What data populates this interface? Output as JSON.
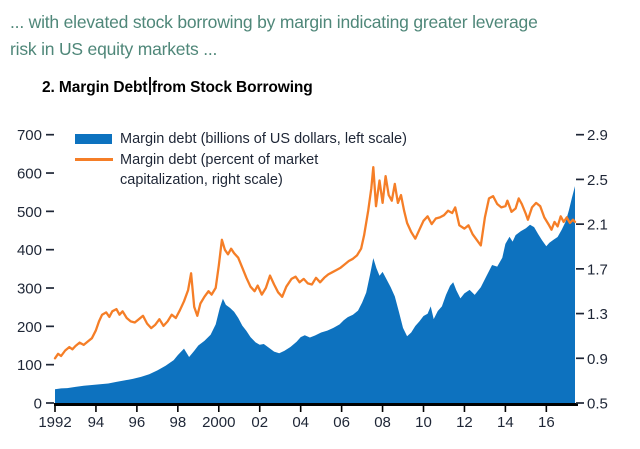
{
  "header": {
    "note_line1": "... with elevated stock borrowing by margin indicating greater leverage",
    "note_line2": "risk in US equity markets ...",
    "panel_title_part1": "2. Margin Debt",
    "panel_title_part2": "from Stock Borrowing"
  },
  "legend": {
    "series1_label": "Margin debt (billions of US dollars, left scale)",
    "series2_label_line1": "Margin debt (percent of market",
    "series2_label_line2": "capitalization, right scale)"
  },
  "colors": {
    "area_blue": "#0d72bf",
    "line_orange": "#f57e27",
    "header_teal": "#4f8779",
    "text_dark": "#1e2636",
    "axis_black": "#000000"
  },
  "chart_data": {
    "type": "combo",
    "title": "2. Margin Debt from Stock Borrowing",
    "x_axis": {
      "min": 1992,
      "max": 2017.4,
      "tick_years": [
        1992,
        1994,
        1996,
        1998,
        2000,
        2002,
        2004,
        2006,
        2008,
        2010,
        2012,
        2014,
        2016
      ],
      "tick_labels": [
        "1992",
        "94",
        "96",
        "98",
        "2000",
        "02",
        "04",
        "06",
        "08",
        "10",
        "12",
        "14",
        "16"
      ]
    },
    "left_axis": {
      "label": "Margin debt (billions of US dollars)",
      "min": 0,
      "max": 700,
      "ticks": [
        0,
        100,
        200,
        300,
        400,
        500,
        600,
        700
      ]
    },
    "right_axis": {
      "label": "Margin debt (percent of market capitalization)",
      "min": 0.5,
      "max": 2.9,
      "ticks": [
        0.5,
        0.9,
        1.3,
        1.7,
        2.1,
        2.5,
        2.9
      ]
    },
    "series": [
      {
        "name": "Margin debt (billions of US dollars, left scale)",
        "type": "area",
        "axis": "left",
        "color": "#0d72bf",
        "points": [
          [
            1992.0,
            36
          ],
          [
            1992.3,
            38
          ],
          [
            1992.6,
            39
          ],
          [
            1993.0,
            42
          ],
          [
            1993.4,
            45
          ],
          [
            1993.8,
            47
          ],
          [
            1994.2,
            49
          ],
          [
            1994.6,
            51
          ],
          [
            1995.0,
            55
          ],
          [
            1995.4,
            59
          ],
          [
            1995.8,
            63
          ],
          [
            1996.2,
            68
          ],
          [
            1996.6,
            75
          ],
          [
            1997.0,
            85
          ],
          [
            1997.4,
            97
          ],
          [
            1997.8,
            112
          ],
          [
            1998.0,
            125
          ],
          [
            1998.3,
            142
          ],
          [
            1998.55,
            120
          ],
          [
            1998.8,
            136
          ],
          [
            1999.0,
            150
          ],
          [
            1999.3,
            162
          ],
          [
            1999.6,
            178
          ],
          [
            1999.85,
            205
          ],
          [
            2000.05,
            248
          ],
          [
            2000.2,
            272
          ],
          [
            2000.35,
            256
          ],
          [
            2000.55,
            248
          ],
          [
            2000.75,
            238
          ],
          [
            2000.95,
            222
          ],
          [
            2001.15,
            202
          ],
          [
            2001.35,
            188
          ],
          [
            2001.55,
            172
          ],
          [
            2001.8,
            158
          ],
          [
            2002.0,
            152
          ],
          [
            2002.2,
            154
          ],
          [
            2002.45,
            144
          ],
          [
            2002.7,
            134
          ],
          [
            2002.95,
            130
          ],
          [
            2003.2,
            136
          ],
          [
            2003.5,
            146
          ],
          [
            2003.8,
            160
          ],
          [
            2004.0,
            172
          ],
          [
            2004.2,
            177
          ],
          [
            2004.45,
            171
          ],
          [
            2004.7,
            176
          ],
          [
            2005.0,
            184
          ],
          [
            2005.3,
            189
          ],
          [
            2005.6,
            196
          ],
          [
            2005.9,
            205
          ],
          [
            2006.1,
            216
          ],
          [
            2006.3,
            224
          ],
          [
            2006.55,
            230
          ],
          [
            2006.8,
            241
          ],
          [
            2007.0,
            262
          ],
          [
            2007.2,
            288
          ],
          [
            2007.4,
            338
          ],
          [
            2007.55,
            378
          ],
          [
            2007.7,
            352
          ],
          [
            2007.85,
            332
          ],
          [
            2008.0,
            342
          ],
          [
            2008.2,
            322
          ],
          [
            2008.4,
            302
          ],
          [
            2008.6,
            278
          ],
          [
            2008.8,
            238
          ],
          [
            2009.0,
            196
          ],
          [
            2009.2,
            174
          ],
          [
            2009.4,
            184
          ],
          [
            2009.6,
            201
          ],
          [
            2009.8,
            213
          ],
          [
            2010.0,
            227
          ],
          [
            2010.2,
            233
          ],
          [
            2010.35,
            252
          ],
          [
            2010.5,
            219
          ],
          [
            2010.7,
            240
          ],
          [
            2010.9,
            252
          ],
          [
            2011.1,
            282
          ],
          [
            2011.3,
            306
          ],
          [
            2011.45,
            315
          ],
          [
            2011.6,
            294
          ],
          [
            2011.8,
            273
          ],
          [
            2012.0,
            286
          ],
          [
            2012.25,
            295
          ],
          [
            2012.5,
            282
          ],
          [
            2012.8,
            302
          ],
          [
            2013.1,
            334
          ],
          [
            2013.35,
            360
          ],
          [
            2013.6,
            356
          ],
          [
            2013.85,
            379
          ],
          [
            2014.0,
            415
          ],
          [
            2014.2,
            434
          ],
          [
            2014.35,
            421
          ],
          [
            2014.5,
            438
          ],
          [
            2014.75,
            448
          ],
          [
            2015.0,
            456
          ],
          [
            2015.2,
            465
          ],
          [
            2015.4,
            459
          ],
          [
            2015.6,
            441
          ],
          [
            2015.8,
            424
          ],
          [
            2016.0,
            409
          ],
          [
            2016.15,
            418
          ],
          [
            2016.35,
            426
          ],
          [
            2016.55,
            433
          ],
          [
            2016.75,
            452
          ],
          [
            2016.95,
            474
          ],
          [
            2017.1,
            503
          ],
          [
            2017.25,
            535
          ],
          [
            2017.4,
            566
          ]
        ]
      },
      {
        "name": "Margin debt (percent of market capitalization, right scale)",
        "type": "line",
        "axis": "right",
        "color": "#f57e27",
        "points": [
          [
            1992.0,
            0.9
          ],
          [
            1992.15,
            0.94
          ],
          [
            1992.3,
            0.92
          ],
          [
            1992.5,
            0.97
          ],
          [
            1992.7,
            1.0
          ],
          [
            1992.85,
            0.98
          ],
          [
            1993.0,
            1.01
          ],
          [
            1993.2,
            1.04
          ],
          [
            1993.4,
            1.02
          ],
          [
            1993.6,
            1.05
          ],
          [
            1993.8,
            1.08
          ],
          [
            1994.0,
            1.15
          ],
          [
            1994.15,
            1.23
          ],
          [
            1994.3,
            1.29
          ],
          [
            1994.5,
            1.31
          ],
          [
            1994.65,
            1.27
          ],
          [
            1994.8,
            1.32
          ],
          [
            1995.0,
            1.34
          ],
          [
            1995.15,
            1.29
          ],
          [
            1995.3,
            1.32
          ],
          [
            1995.5,
            1.26
          ],
          [
            1995.7,
            1.23
          ],
          [
            1995.9,
            1.22
          ],
          [
            1996.1,
            1.25
          ],
          [
            1996.3,
            1.28
          ],
          [
            1996.5,
            1.21
          ],
          [
            1996.7,
            1.17
          ],
          [
            1996.9,
            1.2
          ],
          [
            1997.1,
            1.25
          ],
          [
            1997.3,
            1.19
          ],
          [
            1997.5,
            1.23
          ],
          [
            1997.7,
            1.29
          ],
          [
            1997.9,
            1.26
          ],
          [
            1998.1,
            1.33
          ],
          [
            1998.3,
            1.41
          ],
          [
            1998.5,
            1.51
          ],
          [
            1998.65,
            1.66
          ],
          [
            1998.8,
            1.36
          ],
          [
            1998.95,
            1.28
          ],
          [
            1999.1,
            1.39
          ],
          [
            1999.3,
            1.45
          ],
          [
            1999.5,
            1.5
          ],
          [
            1999.65,
            1.47
          ],
          [
            1999.85,
            1.53
          ],
          [
            2000.0,
            1.73
          ],
          [
            2000.15,
            1.96
          ],
          [
            2000.3,
            1.87
          ],
          [
            2000.45,
            1.83
          ],
          [
            2000.6,
            1.88
          ],
          [
            2000.75,
            1.84
          ],
          [
            2000.95,
            1.8
          ],
          [
            2001.15,
            1.71
          ],
          [
            2001.35,
            1.62
          ],
          [
            2001.55,
            1.54
          ],
          [
            2001.75,
            1.5
          ],
          [
            2001.9,
            1.55
          ],
          [
            2002.1,
            1.47
          ],
          [
            2002.3,
            1.53
          ],
          [
            2002.5,
            1.64
          ],
          [
            2002.7,
            1.56
          ],
          [
            2002.9,
            1.49
          ],
          [
            2003.1,
            1.45
          ],
          [
            2003.3,
            1.54
          ],
          [
            2003.55,
            1.61
          ],
          [
            2003.75,
            1.63
          ],
          [
            2003.95,
            1.58
          ],
          [
            2004.15,
            1.61
          ],
          [
            2004.35,
            1.57
          ],
          [
            2004.55,
            1.56
          ],
          [
            2004.75,
            1.62
          ],
          [
            2004.95,
            1.58
          ],
          [
            2005.15,
            1.62
          ],
          [
            2005.35,
            1.65
          ],
          [
            2005.55,
            1.67
          ],
          [
            2005.75,
            1.69
          ],
          [
            2005.95,
            1.71
          ],
          [
            2006.15,
            1.74
          ],
          [
            2006.35,
            1.77
          ],
          [
            2006.55,
            1.79
          ],
          [
            2006.75,
            1.82
          ],
          [
            2006.95,
            1.88
          ],
          [
            2007.1,
            2.0
          ],
          [
            2007.3,
            2.22
          ],
          [
            2007.45,
            2.42
          ],
          [
            2007.55,
            2.61
          ],
          [
            2007.68,
            2.26
          ],
          [
            2007.85,
            2.49
          ],
          [
            2008.0,
            2.29
          ],
          [
            2008.15,
            2.53
          ],
          [
            2008.3,
            2.36
          ],
          [
            2008.45,
            2.31
          ],
          [
            2008.6,
            2.46
          ],
          [
            2008.75,
            2.29
          ],
          [
            2008.9,
            2.36
          ],
          [
            2009.05,
            2.22
          ],
          [
            2009.2,
            2.11
          ],
          [
            2009.4,
            2.03
          ],
          [
            2009.6,
            1.97
          ],
          [
            2009.8,
            2.05
          ],
          [
            2010.0,
            2.13
          ],
          [
            2010.2,
            2.17
          ],
          [
            2010.4,
            2.1
          ],
          [
            2010.6,
            2.15
          ],
          [
            2010.8,
            2.16
          ],
          [
            2011.0,
            2.18
          ],
          [
            2011.2,
            2.22
          ],
          [
            2011.4,
            2.2
          ],
          [
            2011.55,
            2.25
          ],
          [
            2011.75,
            2.09
          ],
          [
            2012.0,
            2.06
          ],
          [
            2012.2,
            2.09
          ],
          [
            2012.4,
            2.01
          ],
          [
            2012.6,
            1.96
          ],
          [
            2012.8,
            1.91
          ],
          [
            2013.0,
            2.16
          ],
          [
            2013.2,
            2.33
          ],
          [
            2013.4,
            2.35
          ],
          [
            2013.6,
            2.28
          ],
          [
            2013.8,
            2.25
          ],
          [
            2014.0,
            2.26
          ],
          [
            2014.1,
            2.31
          ],
          [
            2014.3,
            2.21
          ],
          [
            2014.5,
            2.24
          ],
          [
            2014.65,
            2.33
          ],
          [
            2014.8,
            2.28
          ],
          [
            2015.0,
            2.19
          ],
          [
            2015.1,
            2.14
          ],
          [
            2015.3,
            2.25
          ],
          [
            2015.5,
            2.29
          ],
          [
            2015.7,
            2.26
          ],
          [
            2015.9,
            2.16
          ],
          [
            2016.1,
            2.1
          ],
          [
            2016.25,
            2.05
          ],
          [
            2016.4,
            2.12
          ],
          [
            2016.55,
            2.08
          ],
          [
            2016.7,
            2.17
          ],
          [
            2016.85,
            2.12
          ],
          [
            2017.0,
            2.16
          ],
          [
            2017.15,
            2.11
          ],
          [
            2017.3,
            2.14
          ],
          [
            2017.4,
            2.12
          ]
        ]
      }
    ]
  }
}
